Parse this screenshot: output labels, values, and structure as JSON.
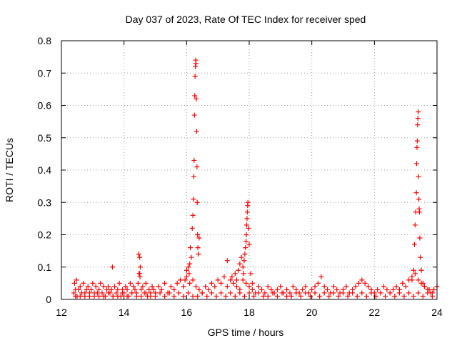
{
  "chart_data": {
    "type": "scatter",
    "title": "Day 037 of 2023, Rate Of TEC Index for receiver sped",
    "xlabel": "GPS time / hours",
    "ylabel": "ROTI / TECUs",
    "xlim": [
      12,
      24
    ],
    "ylim": [
      0,
      0.8
    ],
    "x_ticks": [
      12,
      14,
      16,
      18,
      20,
      22,
      24
    ],
    "y_ticks": [
      0,
      0.1,
      0.2,
      0.3,
      0.4,
      0.5,
      0.6,
      0.7,
      0.8
    ],
    "x_tick_labels": [
      "12",
      "14",
      "16",
      "18",
      "20",
      "22",
      "24"
    ],
    "y_tick_labels": [
      "0",
      "0.1",
      "0.2",
      "0.3",
      "0.4",
      "0.5",
      "0.6",
      "0.7",
      "0.8"
    ],
    "grid": true,
    "marker": "+",
    "series_color": "#ff0000",
    "series": [
      {
        "x": [
          12.4,
          12.42,
          12.45,
          12.48,
          12.5,
          12.55,
          12.6,
          12.65,
          12.7,
          12.75,
          12.8,
          12.85,
          12.9,
          12.95,
          13.0,
          13.05,
          13.1,
          13.15,
          13.2,
          13.25,
          13.3,
          13.35,
          13.4,
          13.45,
          13.5,
          13.55,
          13.6,
          13.65,
          13.7,
          13.75,
          13.8,
          13.85,
          13.9,
          13.95,
          14.0,
          14.05,
          14.1,
          14.15,
          14.2,
          14.25,
          14.3,
          14.35,
          14.4,
          14.45,
          14.5,
          14.55,
          14.6,
          14.65,
          14.7,
          14.75,
          14.8,
          14.85,
          14.9,
          14.95,
          15.0,
          15.1,
          15.2,
          15.3,
          15.4,
          15.5,
          15.6,
          15.7,
          15.8,
          15.9,
          16.0,
          16.1,
          16.2,
          16.3,
          16.4,
          16.5,
          16.6,
          16.7,
          16.8,
          16.9,
          17.0,
          17.1,
          17.2,
          17.3,
          17.4,
          17.5,
          17.6,
          17.7,
          17.8,
          17.9,
          18.0,
          18.1,
          18.2,
          18.3,
          18.4,
          18.5,
          18.6,
          18.7,
          18.8,
          18.9,
          19.0,
          19.1,
          19.2,
          19.3,
          19.4,
          19.5,
          19.6,
          19.7,
          19.8,
          19.9,
          20.0,
          20.1,
          20.2,
          20.3,
          20.4,
          20.5,
          20.6,
          20.7,
          20.8,
          20.9,
          21.0,
          21.1,
          21.2,
          21.3,
          21.4,
          21.5,
          21.6,
          21.7,
          21.8,
          21.9,
          22.0,
          22.1,
          22.2,
          22.3,
          22.4,
          22.5,
          22.6,
          22.7,
          22.8,
          22.9,
          23.0,
          23.1,
          23.2,
          23.3,
          23.4,
          23.5,
          23.6,
          23.7,
          23.8,
          23.9,
          24.0,
          12.45,
          12.6,
          12.75,
          12.9,
          13.05,
          13.2,
          13.35,
          13.5,
          13.65,
          13.8,
          13.95,
          14.1,
          14.25,
          14.4,
          14.55,
          14.7,
          14.85,
          15.0,
          15.15,
          15.3,
          15.45,
          15.6,
          15.75,
          15.9,
          16.05,
          16.2,
          16.35,
          16.5,
          16.65,
          16.8,
          16.95,
          17.1,
          17.25,
          17.4,
          17.55,
          17.7,
          17.85,
          18.0,
          18.15,
          18.3,
          18.45,
          18.6,
          18.75,
          18.9,
          19.05,
          19.2,
          19.35,
          19.5,
          19.65,
          19.8,
          19.95,
          20.1,
          20.25,
          20.4,
          20.55,
          20.7,
          20.85,
          21.0,
          21.15,
          21.3,
          21.45,
          21.6,
          21.75,
          21.9,
          22.05,
          22.2,
          22.35,
          22.5,
          22.65,
          22.8,
          22.95,
          23.1,
          23.25,
          23.4,
          23.55,
          23.7,
          23.85,
          13.63,
          14.47,
          14.5,
          14.52,
          14.48,
          14.51,
          15.95,
          16.0,
          16.05,
          16.08,
          16.1,
          16.12,
          16.15,
          16.18,
          16.2,
          16.22,
          16.23,
          16.24,
          16.25,
          16.26,
          16.27,
          16.28,
          16.29,
          16.3,
          16.31,
          16.32,
          16.33,
          16.34,
          16.35,
          16.36,
          16.38,
          16.4,
          17.3,
          17.45,
          17.55,
          17.6,
          17.65,
          17.7,
          17.75,
          17.8,
          17.82,
          17.84,
          17.86,
          17.88,
          17.9,
          17.91,
          17.92,
          17.93,
          17.94,
          17.95,
          17.96,
          17.98,
          18.0,
          18.05,
          18.1,
          23.2,
          23.25,
          23.28,
          23.3,
          23.32,
          23.34,
          23.35,
          23.36,
          23.37,
          23.38,
          23.39,
          23.4,
          23.41,
          23.42,
          23.43,
          23.44,
          23.45,
          23.47,
          23.5,
          23.55,
          23.6,
          23.75,
          23.85
        ],
        "y": [
          0.02,
          0.05,
          0.03,
          0.06,
          0.01,
          0.03,
          0.04,
          0.02,
          0.05,
          0.01,
          0.03,
          0.04,
          0.02,
          0.03,
          0.05,
          0.01,
          0.04,
          0.02,
          0.03,
          0.05,
          0.02,
          0.04,
          0.01,
          0.03,
          0.04,
          0.02,
          0.03,
          0.01,
          0.04,
          0.02,
          0.03,
          0.05,
          0.01,
          0.03,
          0.02,
          0.04,
          0.03,
          0.01,
          0.05,
          0.02,
          0.04,
          0.03,
          0.02,
          0.05,
          0.08,
          0.03,
          0.04,
          0.02,
          0.05,
          0.01,
          0.03,
          0.02,
          0.04,
          0.03,
          0.02,
          0.04,
          0.03,
          0.05,
          0.02,
          0.04,
          0.03,
          0.05,
          0.06,
          0.04,
          0.07,
          0.05,
          0.06,
          0.04,
          0.03,
          0.02,
          0.04,
          0.03,
          0.05,
          0.04,
          0.06,
          0.05,
          0.07,
          0.04,
          0.06,
          0.05,
          0.04,
          0.03,
          0.06,
          0.05,
          0.04,
          0.03,
          0.02,
          0.04,
          0.03,
          0.02,
          0.04,
          0.03,
          0.02,
          0.03,
          0.04,
          0.02,
          0.03,
          0.02,
          0.04,
          0.03,
          0.02,
          0.03,
          0.04,
          0.02,
          0.03,
          0.04,
          0.05,
          0.07,
          0.04,
          0.03,
          0.02,
          0.04,
          0.03,
          0.02,
          0.03,
          0.04,
          0.02,
          0.03,
          0.04,
          0.05,
          0.06,
          0.05,
          0.04,
          0.03,
          0.02,
          0.03,
          0.02,
          0.04,
          0.03,
          0.02,
          0.03,
          0.04,
          0.03,
          0.05,
          0.04,
          0.06,
          0.07,
          0.08,
          0.06,
          0.05,
          0.04,
          0.03,
          0.02,
          0.03,
          0.04,
          0.01,
          0.01,
          0.02,
          0.01,
          0.02,
          0.01,
          0.01,
          0.02,
          0.01,
          0.01,
          0.02,
          0.01,
          0.02,
          0.01,
          0.01,
          0.02,
          0.01,
          0.01,
          0.02,
          0.01,
          0.02,
          0.01,
          0.02,
          0.01,
          0.02,
          0.01,
          0.01,
          0.02,
          0.01,
          0.02,
          0.01,
          0.02,
          0.01,
          0.02,
          0.01,
          0.02,
          0.01,
          0.02,
          0.01,
          0.02,
          0.01,
          0.01,
          0.02,
          0.01,
          0.02,
          0.01,
          0.01,
          0.02,
          0.01,
          0.02,
          0.01,
          0.02,
          0.01,
          0.02,
          0.01,
          0.02,
          0.01,
          0.02,
          0.01,
          0.02,
          0.01,
          0.02,
          0.01,
          0.02,
          0.01,
          0.02,
          0.01,
          0.02,
          0.01,
          0.02,
          0.01,
          0.02,
          0.01,
          0.02,
          0.01,
          0.02,
          0.01,
          0.1,
          0.14,
          0.13,
          0.1,
          0.08,
          0.07,
          0.06,
          0.09,
          0.1,
          0.08,
          0.11,
          0.16,
          0.13,
          0.22,
          0.26,
          0.31,
          0.38,
          0.43,
          0.57,
          0.63,
          0.69,
          0.72,
          0.74,
          0.73,
          0.62,
          0.52,
          0.41,
          0.3,
          0.2,
          0.16,
          0.14,
          0.19,
          0.12,
          0.07,
          0.08,
          0.06,
          0.09,
          0.11,
          0.13,
          0.1,
          0.08,
          0.12,
          0.14,
          0.16,
          0.18,
          0.2,
          0.23,
          0.25,
          0.27,
          0.29,
          0.3,
          0.22,
          0.17,
          0.08,
          0.05,
          0.06,
          0.09,
          0.17,
          0.23,
          0.27,
          0.33,
          0.42,
          0.47,
          0.49,
          0.54,
          0.56,
          0.58,
          0.38,
          0.31,
          0.28,
          0.27,
          0.19,
          0.13,
          0.09,
          0.05,
          0.04,
          0.03,
          0.02
        ]
      }
    ]
  }
}
